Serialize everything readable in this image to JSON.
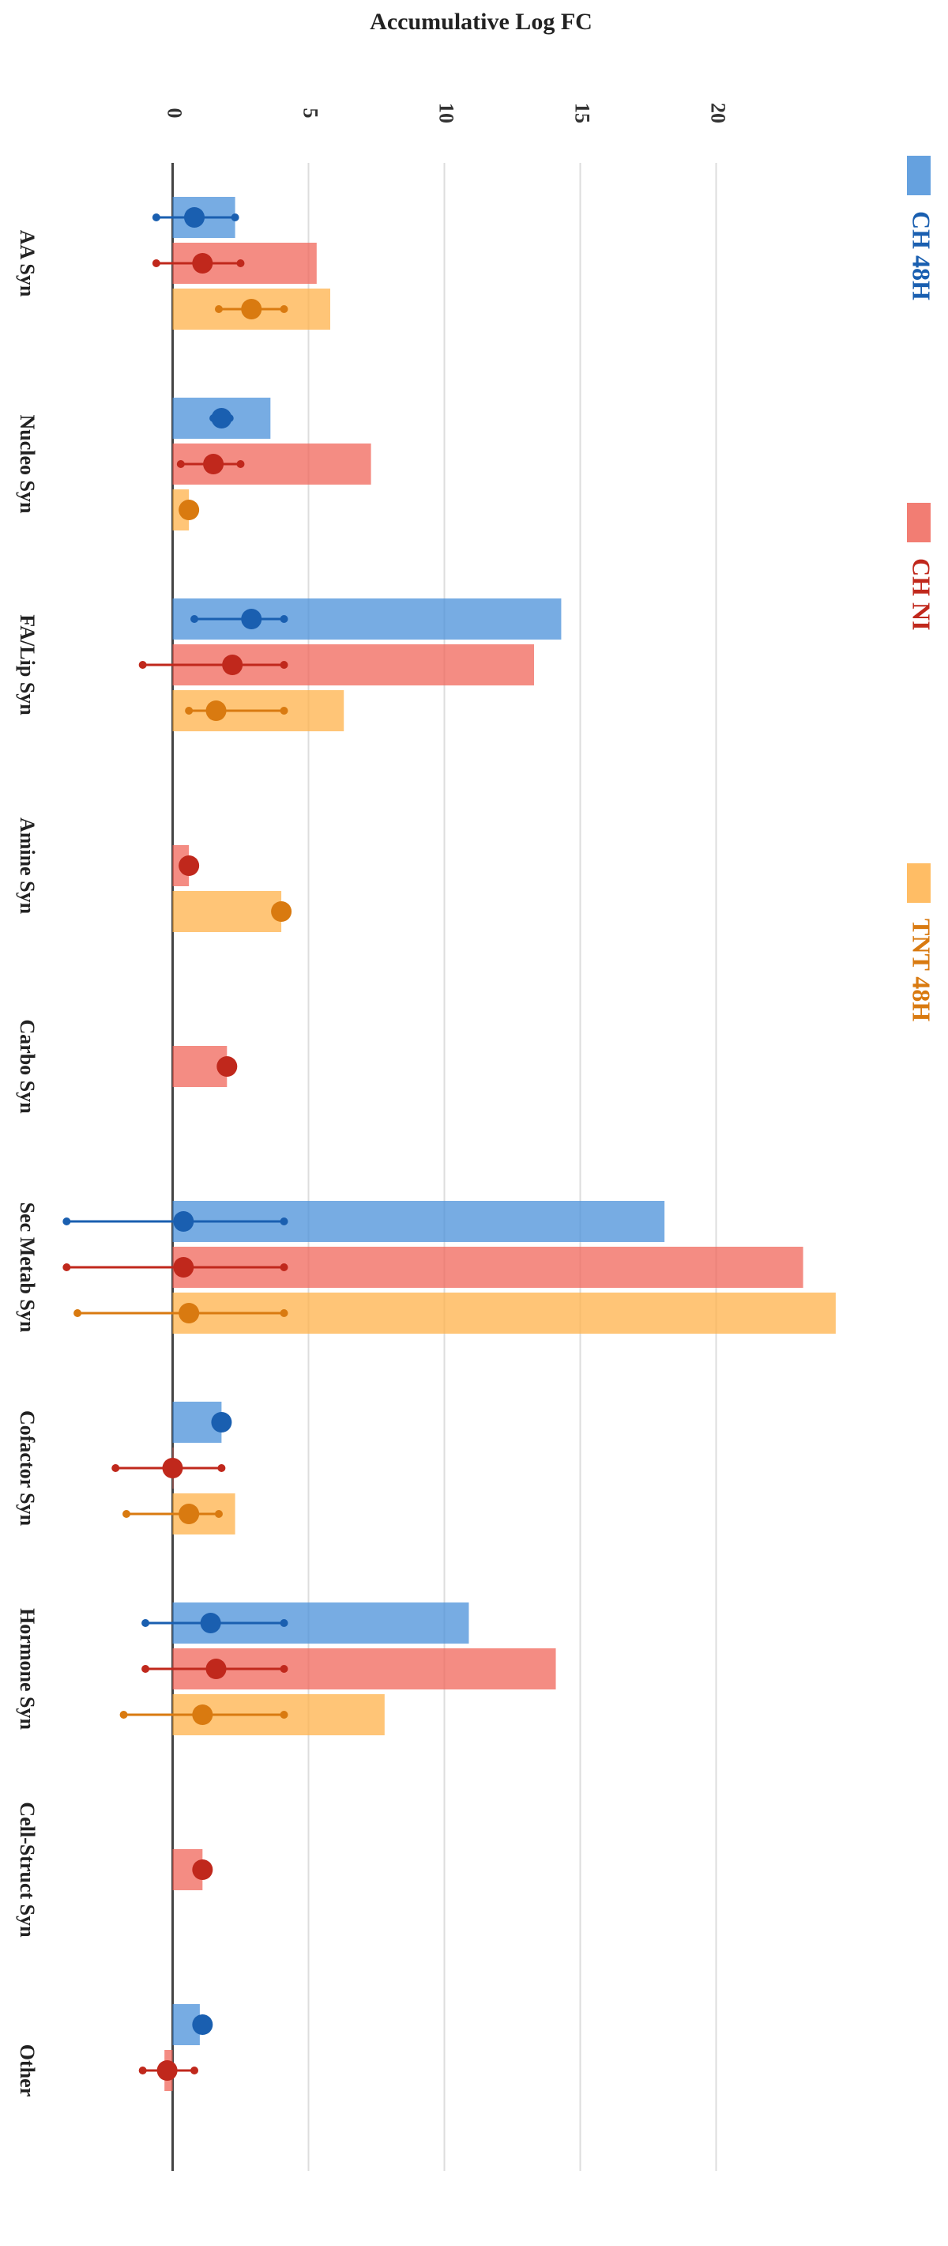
{
  "chart_data": {
    "type": "bar",
    "orientation": "horizontal",
    "title": "Accumulative Log FC",
    "categories": [
      "AA Syn",
      "Nucleo Syn",
      "FA/Lip Syn",
      "Amine Syn",
      "Carbo Syn",
      "Sec Metab Syn",
      "Cofactor Syn",
      "Hormone Syn",
      "Cell-Struct Syn",
      "Other"
    ],
    "xlim": [
      -5,
      28
    ],
    "xticks": [
      0,
      5,
      10,
      15,
      20
    ],
    "grid": true,
    "series": [
      {
        "name": "CH 48H",
        "color": "#4a90d9",
        "point_color": "#1a5fb0",
        "values": [
          2.3,
          3.6,
          14.3,
          null,
          null,
          18.1,
          1.8,
          10.9,
          null,
          1.0
        ],
        "means": [
          0.8,
          1.8,
          2.9,
          null,
          null,
          0.4,
          1.8,
          1.4,
          null,
          1.1
        ],
        "mins": [
          -0.6,
          1.5,
          0.8,
          null,
          null,
          -3.9,
          null,
          -1.0,
          null,
          null
        ],
        "maxs": [
          2.3,
          2.1,
          4.1,
          null,
          null,
          4.1,
          null,
          4.1,
          null,
          null
        ]
      },
      {
        "name": "CH NI",
        "color": "#f0665a",
        "point_color": "#c0281c",
        "values": [
          5.3,
          7.3,
          13.3,
          0.6,
          2.0,
          23.2,
          0,
          14.1,
          1.1,
          -0.3
        ],
        "means": [
          1.1,
          1.5,
          2.2,
          0.6,
          2.0,
          0.4,
          0,
          1.6,
          1.1,
          -0.2
        ],
        "mins": [
          -0.6,
          0.3,
          -1.1,
          null,
          null,
          -3.9,
          -2.1,
          -1.0,
          null,
          -1.1
        ],
        "maxs": [
          2.5,
          2.5,
          4.1,
          null,
          null,
          4.1,
          1.8,
          4.1,
          null,
          0.8
        ]
      },
      {
        "name": "TNT 48H",
        "color": "#ffb24a",
        "point_color": "#d97a10",
        "values": [
          5.8,
          0.6,
          6.3,
          4.0,
          null,
          24.4,
          2.3,
          7.8,
          null,
          null
        ],
        "means": [
          2.9,
          0.6,
          1.6,
          4.0,
          null,
          0.6,
          0.6,
          1.1,
          null,
          null
        ],
        "mins": [
          1.7,
          null,
          0.6,
          null,
          null,
          -3.5,
          -1.7,
          -1.8,
          null,
          null
        ],
        "maxs": [
          4.1,
          null,
          4.1,
          null,
          null,
          4.1,
          1.7,
          4.1,
          null,
          null
        ]
      }
    ]
  }
}
